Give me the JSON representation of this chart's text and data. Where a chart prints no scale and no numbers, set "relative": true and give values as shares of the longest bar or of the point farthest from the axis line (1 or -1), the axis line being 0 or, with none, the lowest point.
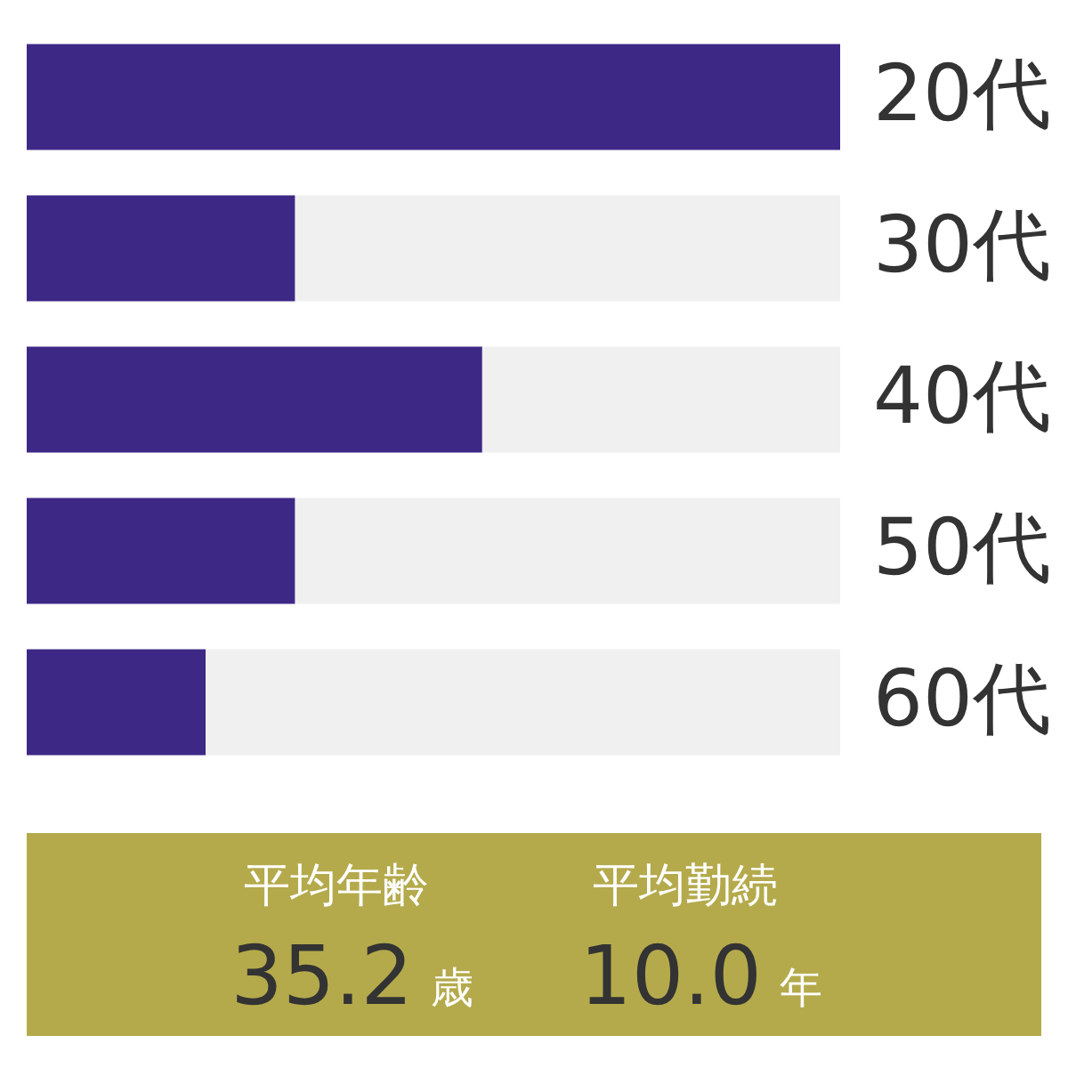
{
  "chart_data": [
    {
      "type": "bar",
      "orientation": "horizontal",
      "stacked": true,
      "relative": true,
      "categories": [
        "20代",
        "30代",
        "40代",
        "50代",
        "60代"
      ],
      "series": [
        {
          "color": "#3e2886",
          "values": [
            1,
            0.33,
            0.56,
            0.33,
            0.22
          ]
        },
        {
          "color": "#f0f0f0",
          "values": [
            0,
            0.67,
            0.44,
            0.67,
            0.78
          ]
        }
      ]
    },
    {
      "type": "other",
      "annotations": [
        "平均年齢",
        "35.2",
        "歳",
        "平均勤続",
        "10.0",
        "年"
      ]
    }
  ]
}
